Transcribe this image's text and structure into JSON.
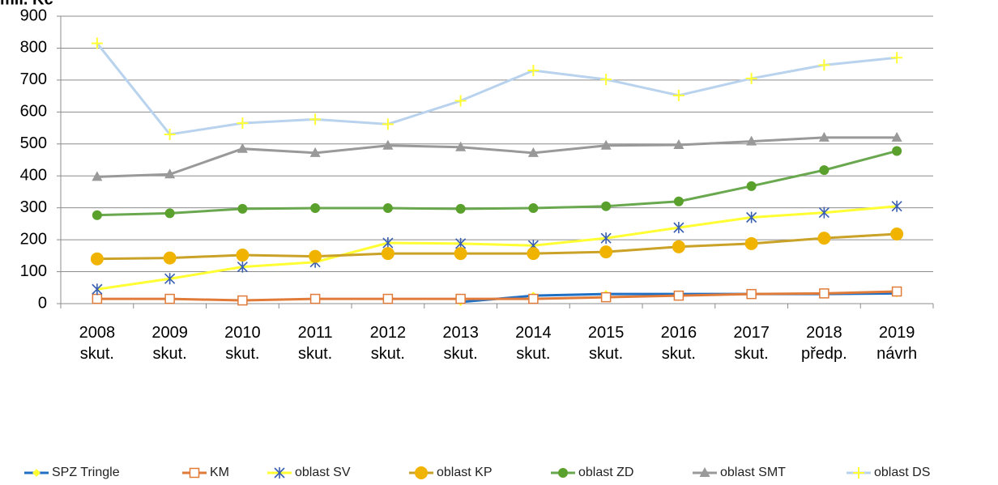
{
  "chart_data": {
    "type": "line",
    "y_label": "mil. Kč",
    "categories": [
      "2008\nskut.",
      "2009\nskut.",
      "2010\nskut.",
      "2011\nskut.",
      "2012\nskut.",
      "2013\nskut.",
      "2014\nskut.",
      "2015\nskut.",
      "2016\nskut.",
      "2017\nskut.",
      "2018\npředp.",
      "2019\nnávrh"
    ],
    "ylim": [
      0,
      900
    ],
    "yticks": [
      0,
      100,
      200,
      300,
      400,
      500,
      600,
      700,
      800,
      900
    ],
    "grid": true,
    "legend": "bottom",
    "series": [
      {
        "name": "SPZ Tringle",
        "color": "#1f6fc4",
        "marker": "diamond",
        "marker_color": "#ffff33",
        "values": [
          null,
          null,
          null,
          null,
          null,
          5,
          25,
          30,
          30,
          30,
          30,
          32
        ]
      },
      {
        "name": "KM",
        "color": "#e07b39",
        "marker": "square-open",
        "marker_color": "#e07b39",
        "values": [
          15,
          15,
          10,
          15,
          15,
          15,
          15,
          20,
          25,
          30,
          32,
          38
        ]
      },
      {
        "name": "oblast SV",
        "color": "#ffff33",
        "marker": "star",
        "marker_color": "#3a5fb0",
        "values": [
          45,
          78,
          115,
          130,
          190,
          188,
          182,
          205,
          238,
          270,
          285,
          305
        ]
      },
      {
        "name": "oblast KP",
        "color": "#c9a227",
        "marker": "circle",
        "marker_color": "#f0b400",
        "values": [
          140,
          143,
          152,
          148,
          157,
          157,
          157,
          162,
          178,
          188,
          205,
          218
        ]
      },
      {
        "name": "oblast ZD",
        "color": "#6aa84f",
        "marker": "circle-small",
        "marker_color": "#5aa02c",
        "values": [
          277,
          283,
          297,
          299,
          299,
          297,
          299,
          305,
          320,
          368,
          418,
          478
        ]
      },
      {
        "name": "oblast SMT",
        "color": "#999999",
        "marker": "triangle",
        "marker_color": "#999999",
        "values": [
          397,
          405,
          485,
          472,
          495,
          490,
          472,
          495,
          497,
          508,
          520,
          520
        ]
      },
      {
        "name": "oblast DS",
        "color": "#b9d3ee",
        "marker": "plus",
        "marker_color": "#ffff33",
        "values": [
          815,
          530,
          565,
          577,
          562,
          635,
          730,
          702,
          652,
          705,
          747,
          770
        ]
      }
    ]
  }
}
